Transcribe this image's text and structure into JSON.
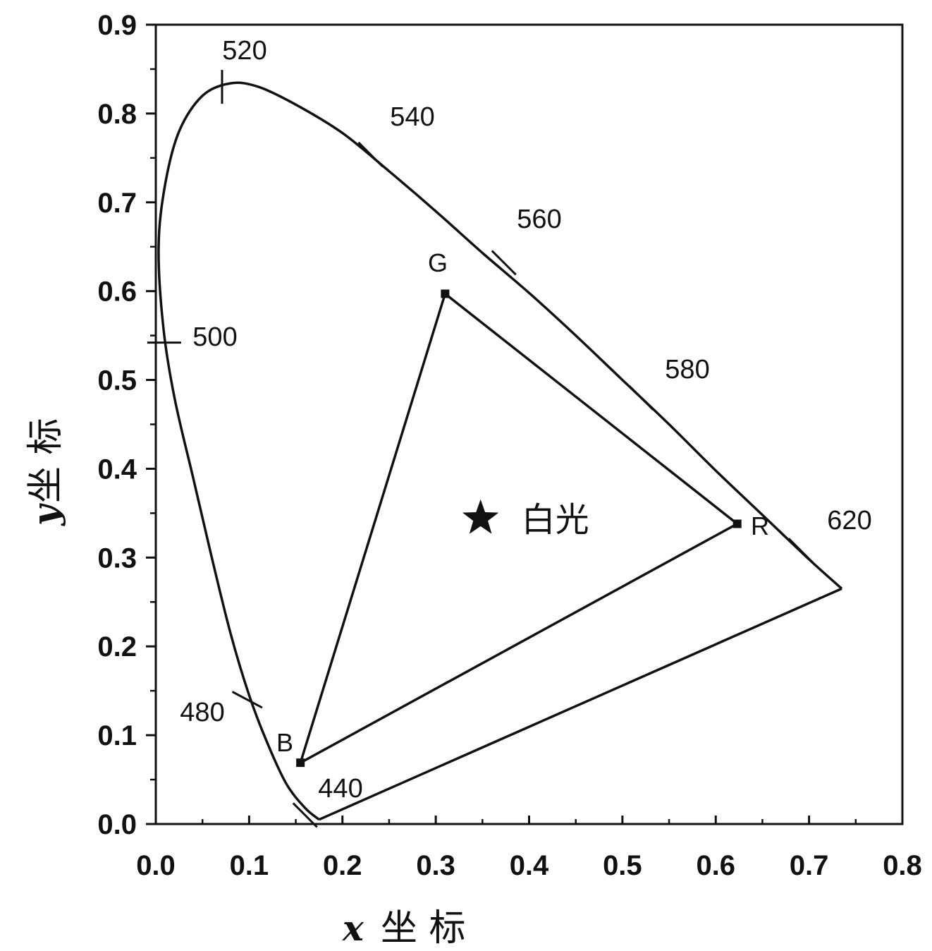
{
  "chart_data": {
    "type": "scatter",
    "xlabel_letter": "x",
    "xlabel_text": "坐 标",
    "ylabel_letter": "y",
    "ylabel_text": "坐 标",
    "xlim": [
      0.0,
      0.8
    ],
    "ylim": [
      0.0,
      0.9
    ],
    "x_ticks": [
      "0.0",
      "0.1",
      "0.2",
      "0.3",
      "0.4",
      "0.5",
      "0.6",
      "0.7",
      "0.8"
    ],
    "y_ticks": [
      "0.0",
      "0.1",
      "0.2",
      "0.3",
      "0.4",
      "0.5",
      "0.6",
      "0.7",
      "0.8",
      "0.9"
    ],
    "grid": false,
    "spectral_locus": [
      [
        0.175,
        0.005
      ],
      [
        0.16,
        0.018
      ],
      [
        0.14,
        0.045
      ],
      [
        0.12,
        0.09
      ],
      [
        0.1,
        0.145
      ],
      [
        0.08,
        0.215
      ],
      [
        0.06,
        0.3
      ],
      [
        0.04,
        0.39
      ],
      [
        0.02,
        0.48
      ],
      [
        0.008,
        0.56
      ],
      [
        0.003,
        0.65
      ],
      [
        0.01,
        0.72
      ],
      [
        0.025,
        0.78
      ],
      [
        0.05,
        0.82
      ],
      [
        0.08,
        0.834
      ],
      [
        0.11,
        0.83
      ],
      [
        0.15,
        0.81
      ],
      [
        0.2,
        0.778
      ],
      [
        0.25,
        0.735
      ],
      [
        0.3,
        0.69
      ],
      [
        0.35,
        0.643
      ],
      [
        0.4,
        0.598
      ],
      [
        0.45,
        0.55
      ],
      [
        0.5,
        0.5
      ],
      [
        0.55,
        0.45
      ],
      [
        0.6,
        0.398
      ],
      [
        0.65,
        0.348
      ],
      [
        0.7,
        0.298
      ],
      [
        0.735,
        0.265
      ]
    ],
    "purple_line": [
      [
        0.735,
        0.265
      ],
      [
        0.175,
        0.005
      ]
    ],
    "wavelength_marks": [
      {
        "label": "520",
        "x": 0.071,
        "y": 0.83,
        "angle": 90
      },
      {
        "label": "540",
        "x": 0.23,
        "y": 0.754,
        "angle": 45
      },
      {
        "label": "560",
        "x": 0.373,
        "y": 0.632,
        "angle": 45
      },
      {
        "label": "580",
        "x": 0.52,
        "y": 0.48,
        "angle": 45
      },
      {
        "label": "620",
        "x": 0.691,
        "y": 0.308,
        "angle": 45
      },
      {
        "label": "500",
        "x": 0.009,
        "y": 0.542,
        "angle": 0
      },
      {
        "label": "480",
        "x": 0.098,
        "y": 0.14,
        "angle": 28
      },
      {
        "label": "440",
        "x": 0.16,
        "y": 0.01,
        "angle": 45
      }
    ],
    "triangle": [
      {
        "label": "R",
        "x": 0.623,
        "y": 0.338
      },
      {
        "label": "G",
        "x": 0.31,
        "y": 0.597
      },
      {
        "label": "B",
        "x": 0.155,
        "y": 0.069
      }
    ],
    "white_point": {
      "label": "白光",
      "x": 0.348,
      "y": 0.344
    }
  }
}
